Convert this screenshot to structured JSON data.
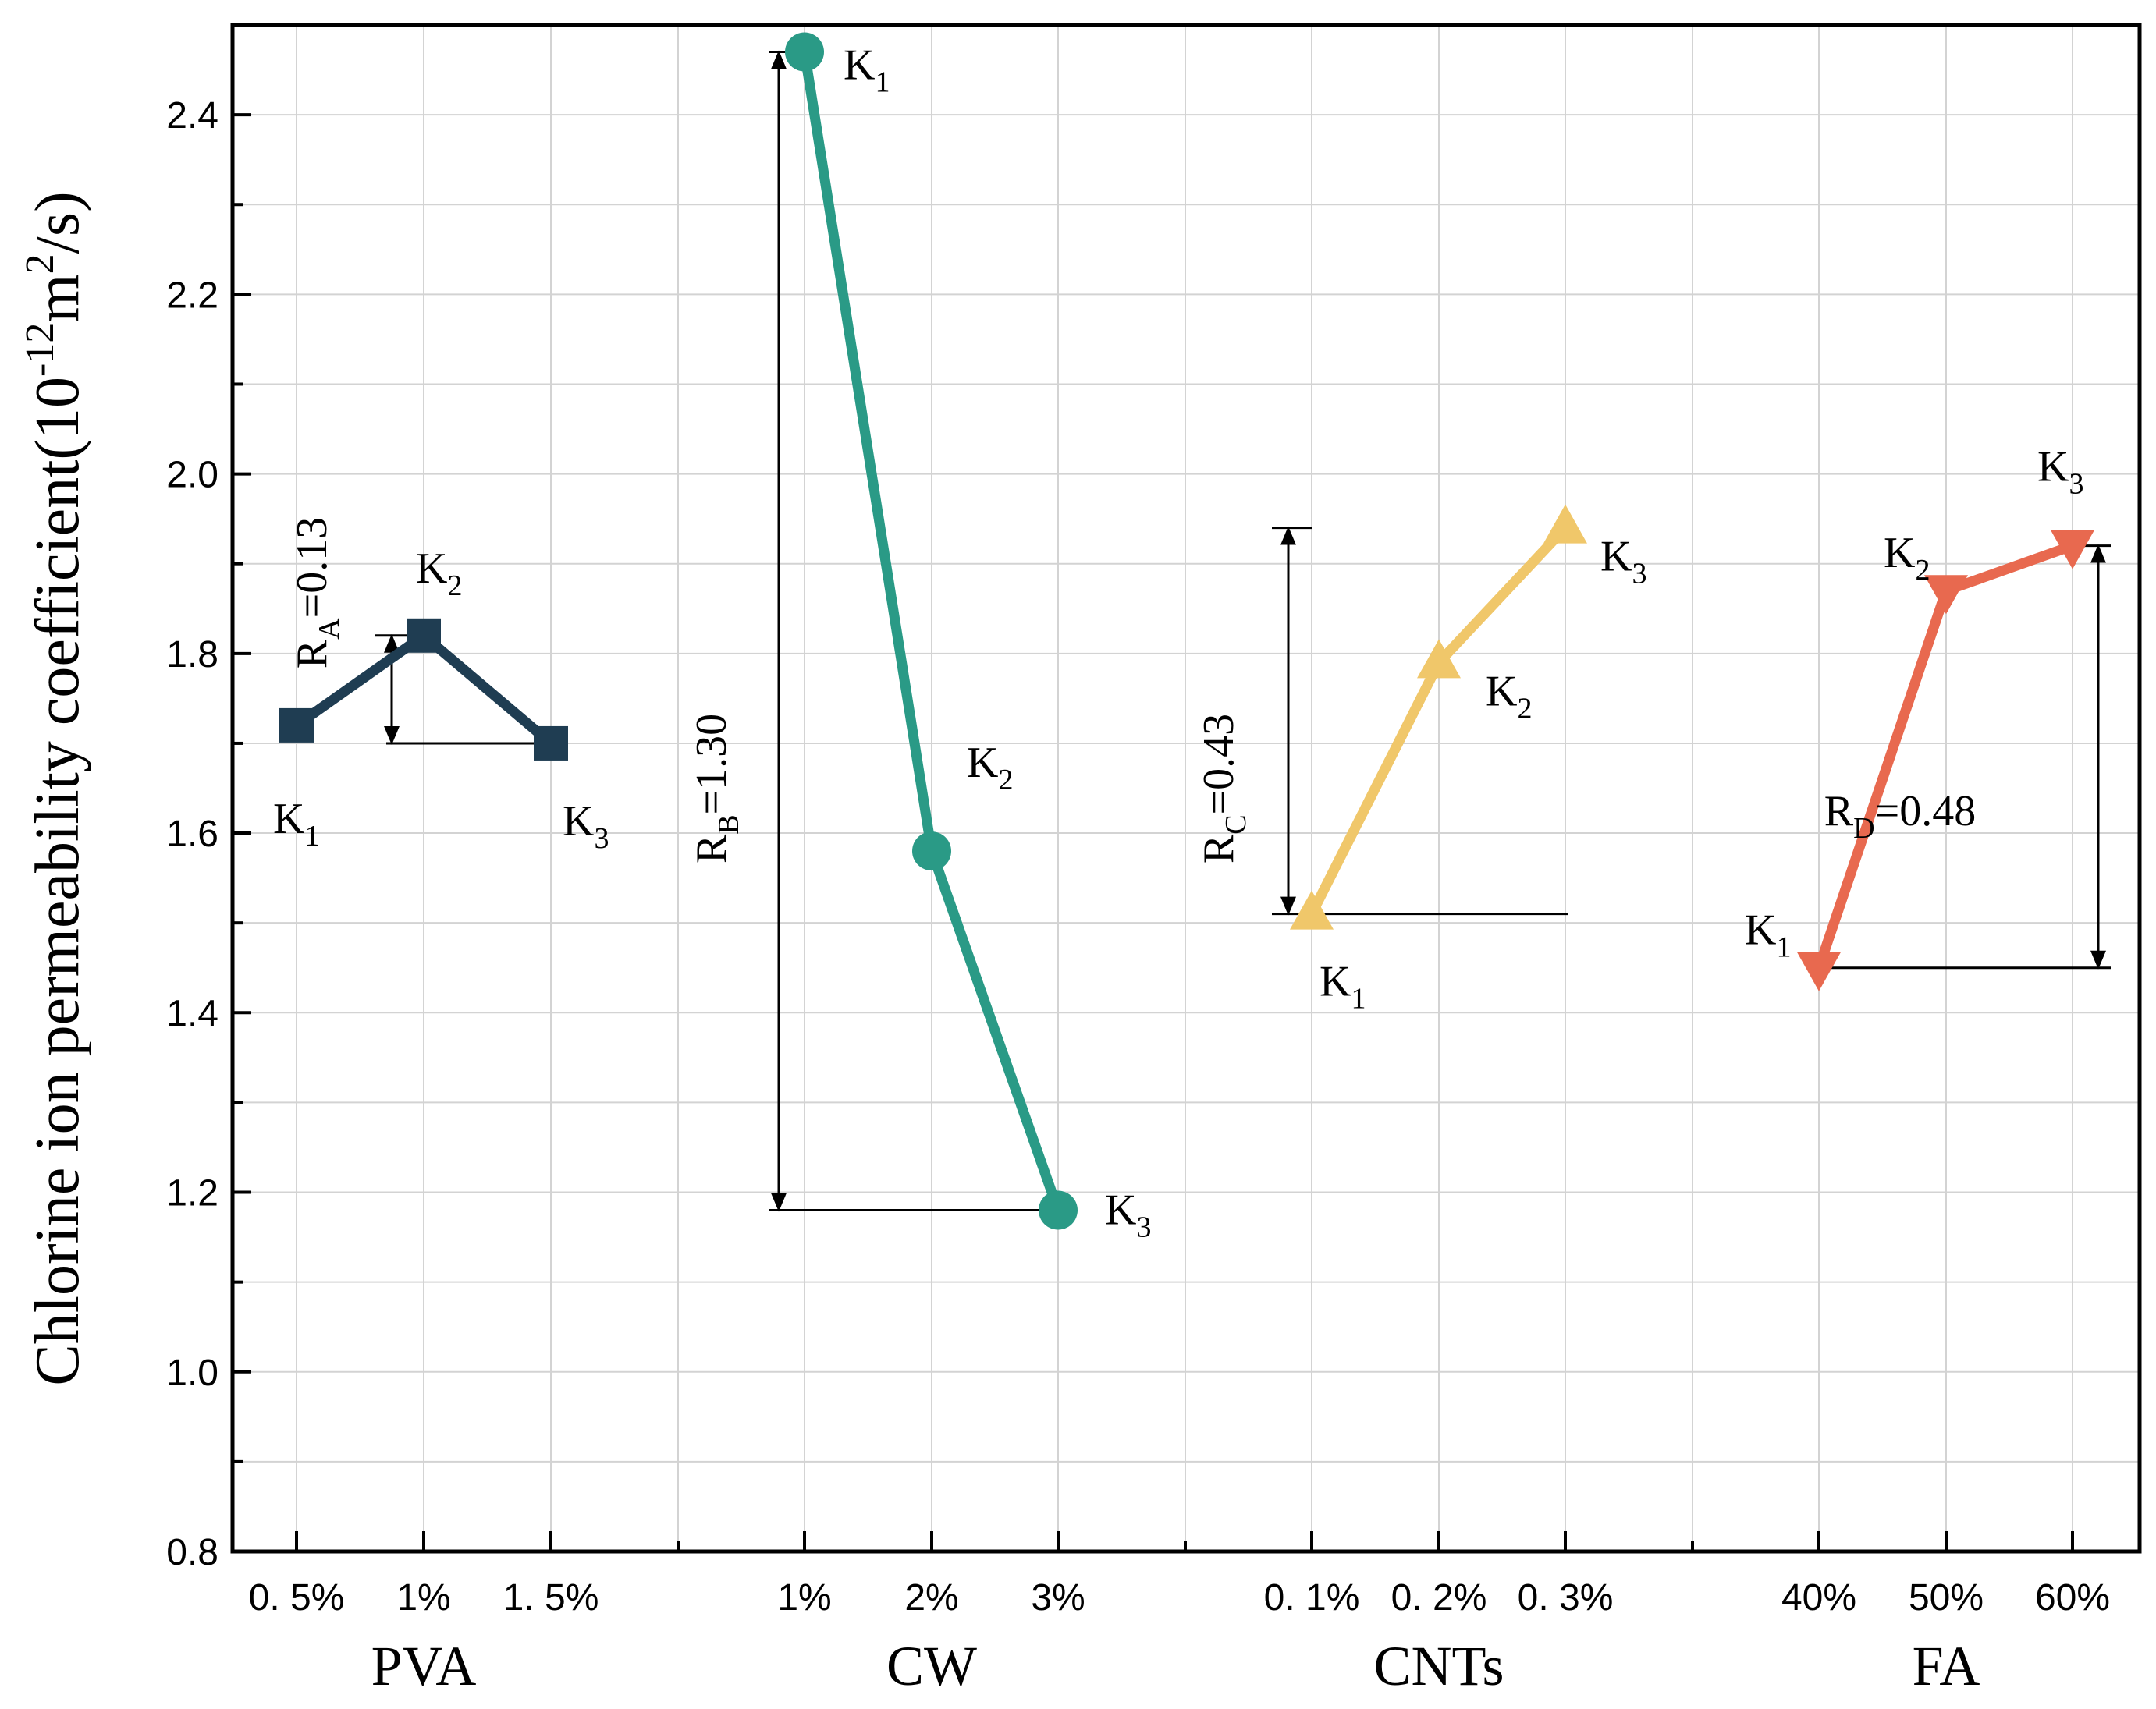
{
  "chart_data": {
    "type": "line",
    "ylabel": "Chlorine ion permeability coefficient(10",
    "ylabel_exp": "-12",
    "ylabel_unit": "m",
    "ylabel_unit_exp": "2",
    "ylabel_tail": "/s)",
    "ylim": [
      0.8,
      2.5
    ],
    "yticks": [
      "0.8",
      "1.0",
      "1.2",
      "1.4",
      "1.6",
      "1.8",
      "2.0",
      "2.2",
      "2.4"
    ],
    "grid": true,
    "factors": [
      {
        "name": "PVA",
        "levels": [
          "0. 5%",
          "1%",
          "1. 5%"
        ],
        "k_labels": [
          "K",
          "K",
          "K"
        ],
        "k_subs": [
          "1",
          "2",
          "3"
        ],
        "values": [
          1.72,
          1.82,
          1.7
        ],
        "marker": "square",
        "color": "#1f3d52",
        "range_label": "R",
        "range_sub": "A",
        "range_text": "=0.13"
      },
      {
        "name": "CW",
        "levels": [
          "1%",
          "2%",
          "3%"
        ],
        "k_labels": [
          "K",
          "K",
          "K"
        ],
        "k_subs": [
          "1",
          "2",
          "3"
        ],
        "values": [
          2.47,
          1.58,
          1.18
        ],
        "marker": "circle",
        "color": "#2a9a86",
        "range_label": "R",
        "range_sub": "B",
        "range_text": "=1.30"
      },
      {
        "name": "CNTs",
        "levels": [
          "0. 1%",
          "0. 2%",
          "0. 3%"
        ],
        "k_labels": [
          "K",
          "K",
          "K"
        ],
        "k_subs": [
          "1",
          "2",
          "3"
        ],
        "values": [
          1.51,
          1.79,
          1.94
        ],
        "marker": "triangle-up",
        "color": "#f0c76a",
        "range_label": "R",
        "range_sub": "C",
        "range_text": "=0.43"
      },
      {
        "name": "FA",
        "levels": [
          "40%",
          "50%",
          "60%"
        ],
        "k_labels": [
          "K",
          "K",
          "K"
        ],
        "k_subs": [
          "1",
          "2",
          "3"
        ],
        "values": [
          1.45,
          1.87,
          1.92
        ],
        "marker": "triangle-down",
        "color": "#e8694f",
        "range_label": "R",
        "range_sub": "D",
        "range_text": "=0.48"
      }
    ]
  }
}
